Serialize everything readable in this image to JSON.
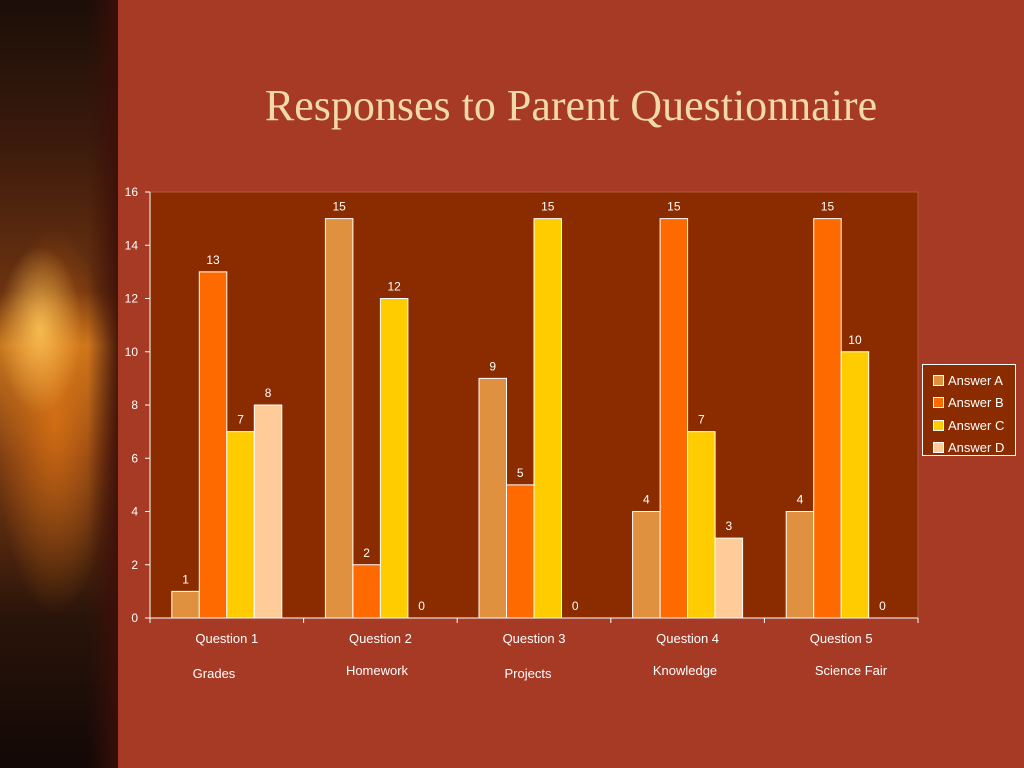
{
  "slide": {
    "title": "Responses to Parent Questionnaire"
  },
  "colors": {
    "background": "#a63a25",
    "plot_background": "#8b2b00",
    "title": "#f2d9a8",
    "series": [
      "#e0913f",
      "#ff6a00",
      "#ffcc00",
      "#ffcc99"
    ]
  },
  "chart_data": {
    "type": "bar",
    "title": "",
    "xlabel": "",
    "ylabel": "",
    "categories": [
      "Question 1",
      "Question 2",
      "Question 3",
      "Question 4",
      "Question 5"
    ],
    "category_subtitles": [
      "Grades",
      "Homework",
      "Projects",
      "Knowledge",
      "Science Fair"
    ],
    "series": [
      {
        "name": "Answer A",
        "values": [
          1,
          15,
          9,
          4,
          4
        ]
      },
      {
        "name": "Answer B",
        "values": [
          13,
          2,
          5,
          15,
          15
        ]
      },
      {
        "name": "Answer C",
        "values": [
          7,
          12,
          15,
          7,
          10
        ]
      },
      {
        "name": "Answer D",
        "values": [
          8,
          0,
          0,
          3,
          0
        ]
      }
    ],
    "ylim": [
      0,
      16
    ],
    "yticks": [
      0,
      2,
      4,
      6,
      8,
      10,
      12,
      14,
      16
    ],
    "grid": false,
    "legend": "right",
    "data_labels": true
  }
}
